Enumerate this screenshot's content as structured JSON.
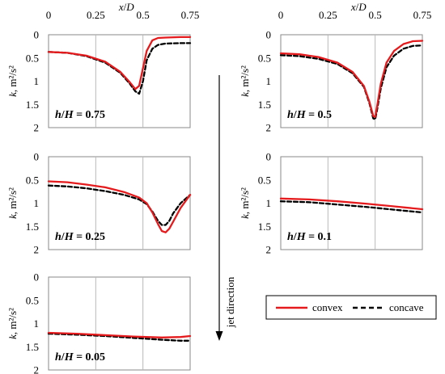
{
  "legend": {
    "convex_label": "convex",
    "concave_label": "concave",
    "convex_color": "#e41a1c",
    "concave_color": "#000000"
  },
  "jet_direction_label": "jet direction",
  "axes_common": {
    "xlabel": "x/D",
    "ylabel": "k, m²/s²",
    "x_ticks": [
      "0",
      "0.25",
      "0.5",
      "0.75"
    ],
    "y_ticks": [
      "0",
      "0.5",
      "1",
      "1.5",
      "2"
    ]
  },
  "chart_data": [
    {
      "type": "line",
      "panel_label": "h/H = 0.75",
      "xlabel": "x/D",
      "ylabel": "k, m²/s²",
      "xlim": [
        0,
        0.75
      ],
      "ylim": [
        0,
        2
      ],
      "y_inverted": true,
      "series": [
        {
          "name": "convex",
          "x": [
            0,
            0.1,
            0.2,
            0.3,
            0.38,
            0.43,
            0.46,
            0.48,
            0.5,
            0.52,
            0.55,
            0.58,
            0.62,
            0.7,
            0.75
          ],
          "y": [
            0.37,
            0.39,
            0.45,
            0.58,
            0.8,
            1.02,
            1.17,
            1.1,
            0.72,
            0.35,
            0.12,
            0.07,
            0.06,
            0.05,
            0.05
          ]
        },
        {
          "name": "concave",
          "x": [
            0,
            0.1,
            0.2,
            0.3,
            0.38,
            0.43,
            0.46,
            0.48,
            0.5,
            0.52,
            0.55,
            0.58,
            0.62,
            0.7,
            0.75
          ],
          "y": [
            0.37,
            0.39,
            0.46,
            0.6,
            0.82,
            1.05,
            1.22,
            1.27,
            1.0,
            0.55,
            0.3,
            0.22,
            0.19,
            0.18,
            0.18
          ]
        }
      ]
    },
    {
      "type": "line",
      "panel_label": "h/H = 0.5",
      "xlabel": "x/D",
      "ylabel": "k, m²/s²",
      "xlim": [
        0,
        0.75
      ],
      "ylim": [
        0,
        2
      ],
      "y_inverted": true,
      "series": [
        {
          "name": "convex",
          "x": [
            0,
            0.1,
            0.2,
            0.3,
            0.38,
            0.44,
            0.47,
            0.49,
            0.5,
            0.51,
            0.53,
            0.56,
            0.6,
            0.65,
            0.7,
            0.75
          ],
          "y": [
            0.4,
            0.42,
            0.48,
            0.6,
            0.8,
            1.1,
            1.45,
            1.75,
            1.77,
            1.55,
            1.05,
            0.6,
            0.35,
            0.2,
            0.14,
            0.13
          ]
        },
        {
          "name": "concave",
          "x": [
            0,
            0.1,
            0.2,
            0.3,
            0.38,
            0.44,
            0.47,
            0.49,
            0.5,
            0.51,
            0.53,
            0.56,
            0.6,
            0.65,
            0.7,
            0.75
          ],
          "y": [
            0.44,
            0.46,
            0.52,
            0.63,
            0.83,
            1.12,
            1.48,
            1.8,
            1.82,
            1.62,
            1.15,
            0.7,
            0.45,
            0.3,
            0.24,
            0.23
          ]
        }
      ]
    },
    {
      "type": "line",
      "panel_label": "h/H = 0.25",
      "xlabel": "x/D",
      "ylabel": "k, m²/s²",
      "xlim": [
        0,
        0.75
      ],
      "ylim": [
        0,
        2
      ],
      "y_inverted": true,
      "series": [
        {
          "name": "convex",
          "x": [
            0,
            0.1,
            0.2,
            0.3,
            0.4,
            0.48,
            0.52,
            0.55,
            0.58,
            0.6,
            0.62,
            0.64,
            0.66,
            0.7,
            0.75
          ],
          "y": [
            0.53,
            0.55,
            0.6,
            0.66,
            0.76,
            0.88,
            1.0,
            1.2,
            1.45,
            1.6,
            1.63,
            1.55,
            1.4,
            1.1,
            0.82
          ]
        },
        {
          "name": "concave",
          "x": [
            0,
            0.1,
            0.2,
            0.3,
            0.4,
            0.48,
            0.52,
            0.55,
            0.58,
            0.6,
            0.62,
            0.64,
            0.66,
            0.7,
            0.75
          ],
          "y": [
            0.62,
            0.64,
            0.68,
            0.74,
            0.82,
            0.92,
            1.02,
            1.18,
            1.38,
            1.47,
            1.47,
            1.38,
            1.22,
            1.0,
            0.82
          ]
        }
      ]
    },
    {
      "type": "line",
      "panel_label": "h/H = 0.1",
      "xlabel": "x/D",
      "ylabel": "k, m²/s²",
      "xlim": [
        0,
        0.75
      ],
      "ylim": [
        0,
        2
      ],
      "y_inverted": true,
      "series": [
        {
          "name": "convex",
          "x": [
            0,
            0.15,
            0.3,
            0.45,
            0.6,
            0.75
          ],
          "y": [
            0.9,
            0.92,
            0.96,
            1.01,
            1.07,
            1.13
          ]
        },
        {
          "name": "concave",
          "x": [
            0,
            0.15,
            0.3,
            0.45,
            0.6,
            0.75
          ],
          "y": [
            0.96,
            0.98,
            1.03,
            1.08,
            1.14,
            1.2
          ]
        }
      ]
    },
    {
      "type": "line",
      "panel_label": "h/H = 0.05",
      "xlabel": "x/D",
      "ylabel": "k, m²/s²",
      "xlim": [
        0,
        0.75
      ],
      "ylim": [
        0,
        2
      ],
      "y_inverted": true,
      "series": [
        {
          "name": "convex",
          "x": [
            0,
            0.15,
            0.3,
            0.45,
            0.6,
            0.7,
            0.75
          ],
          "y": [
            1.2,
            1.22,
            1.25,
            1.28,
            1.3,
            1.29,
            1.27
          ]
        },
        {
          "name": "concave",
          "x": [
            0,
            0.15,
            0.3,
            0.45,
            0.6,
            0.7,
            0.75
          ],
          "y": [
            1.22,
            1.24,
            1.27,
            1.31,
            1.35,
            1.37,
            1.37
          ]
        }
      ]
    }
  ]
}
